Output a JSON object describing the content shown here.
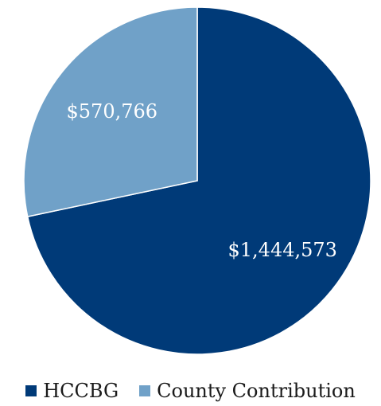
{
  "chart_data": {
    "type": "pie",
    "title": "",
    "slices": [
      {
        "name": "HCCBG",
        "value": 1444573,
        "label": "$1,444,573",
        "color": "#003A78"
      },
      {
        "name": "County Contribution",
        "value": 570766,
        "label": "$570,766",
        "color": "#70A1C8"
      }
    ],
    "legend_position": "bottom"
  }
}
